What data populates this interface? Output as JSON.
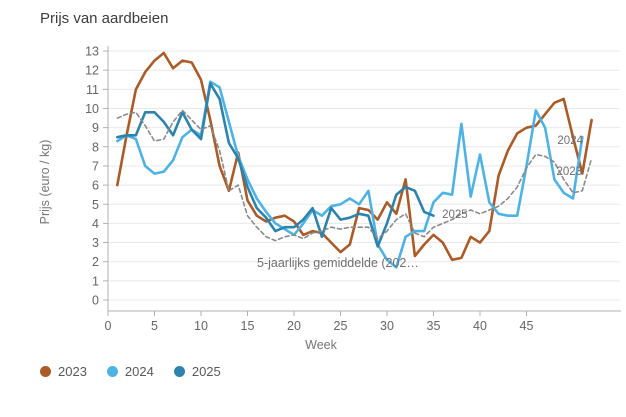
{
  "title": "Prijs van aardbeien",
  "y_axis": {
    "label": "Prijs (euro / kg)"
  },
  "x_axis": {
    "label": "Week"
  },
  "annotations": {
    "average_label": "5-jaarlijks gemiddelde (202…",
    "series_end_labels": [
      {
        "text": "2024",
        "week": 49.7,
        "value": 8.36
      },
      {
        "text": "2023",
        "week": 49.6,
        "value": 6.74
      },
      {
        "text": "2025",
        "week": 37.3,
        "value": 4.49
      }
    ]
  },
  "legend": {
    "items": [
      {
        "label": "2023",
        "color": "#ab5b28"
      },
      {
        "label": "2024",
        "color": "#4fb2e5"
      },
      {
        "label": "2025",
        "color": "#2e83ad"
      }
    ]
  },
  "colors": {
    "grid": "#e8e8e8",
    "axis": "#b0b0b0",
    "tick_text": "#666666",
    "label_text": "#707070"
  },
  "chart_data": {
    "type": "line",
    "title": "Prijs van aardbeien",
    "xlabel": "Week",
    "ylabel": "Prijs (euro / kg)",
    "xlim": [
      0,
      55
    ],
    "ylim": [
      0,
      13
    ],
    "x_ticks": [
      0,
      5,
      10,
      15,
      20,
      25,
      30,
      35,
      40,
      45
    ],
    "y_ticks": [
      0,
      1,
      2,
      3,
      4,
      5,
      6,
      7,
      8,
      9,
      10,
      11,
      12,
      13
    ],
    "grid": "horizontal-only",
    "legend_position": "bottom-left",
    "x_unit": "week number, series start at week 1",
    "series": [
      {
        "name": "2023",
        "color": "#ab5b28",
        "style": "solid",
        "start_week": 1,
        "values": [
          6.0,
          8.6,
          11.0,
          11.9,
          12.5,
          12.9,
          12.1,
          12.5,
          12.4,
          11.5,
          9.4,
          7.0,
          5.7,
          7.7,
          5.2,
          4.4,
          4.1,
          4.3,
          4.4,
          4.1,
          3.4,
          3.6,
          3.5,
          3.0,
          2.5,
          2.9,
          4.8,
          4.7,
          4.2,
          5.1,
          4.5,
          6.3,
          2.3,
          2.9,
          3.4,
          3.0,
          2.1,
          2.2,
          3.3,
          3.0,
          3.6,
          6.5,
          7.8,
          8.7,
          9.0,
          9.1,
          9.7,
          10.3,
          10.5,
          8.5,
          6.6,
          9.4
        ]
      },
      {
        "name": "2024",
        "color": "#4fb2e5",
        "style": "solid",
        "start_week": 1,
        "values": [
          8.3,
          8.6,
          8.4,
          7.0,
          6.6,
          6.7,
          7.3,
          8.5,
          8.9,
          8.6,
          11.4,
          11.1,
          9.3,
          7.5,
          6.3,
          5.3,
          4.6,
          4.0,
          3.7,
          3.4,
          4.0,
          4.7,
          4.4,
          4.9,
          5.0,
          5.3,
          5.0,
          5.7,
          2.9,
          2.1,
          1.7,
          3.3,
          3.6,
          3.6,
          5.1,
          5.6,
          5.5,
          9.2,
          5.4,
          7.6,
          5.1,
          4.5,
          4.4,
          4.4,
          7.0,
          9.9,
          9.0,
          6.3,
          5.6,
          5.3,
          8.5
        ]
      },
      {
        "name": "2025",
        "color": "#2e83ad",
        "style": "solid",
        "start_week": 1,
        "values": [
          8.5,
          8.6,
          8.6,
          9.8,
          9.8,
          9.3,
          8.6,
          9.8,
          8.9,
          8.4,
          11.3,
          10.5,
          8.2,
          7.4,
          5.9,
          4.8,
          4.3,
          3.6,
          3.8,
          3.8,
          4.2,
          4.8,
          3.3,
          4.8,
          4.2,
          4.3,
          4.5,
          4.4,
          2.8,
          4.0,
          5.5,
          5.9,
          5.7,
          4.6,
          4.4
        ]
      },
      {
        "name": "5-jaarlijks gemiddelde (202…",
        "color": "#8a8a8a",
        "style": "dashed",
        "start_week": 1,
        "values": [
          9.5,
          9.7,
          9.8,
          9.1,
          8.3,
          8.4,
          9.3,
          9.9,
          9.4,
          8.9,
          9.1,
          7.8,
          5.7,
          6.0,
          4.4,
          3.8,
          3.3,
          3.1,
          3.3,
          3.4,
          3.2,
          3.5,
          3.6,
          3.8,
          3.7,
          3.8,
          3.8,
          3.8,
          3.2,
          3.6,
          4.2,
          4.5,
          3.5,
          3.3,
          3.8,
          4.0,
          4.2,
          4.5,
          4.7,
          4.5,
          4.7,
          4.9,
          5.3,
          5.9,
          6.9,
          7.6,
          7.5,
          7.2,
          6.3,
          5.6,
          5.7,
          7.4
        ]
      }
    ]
  }
}
